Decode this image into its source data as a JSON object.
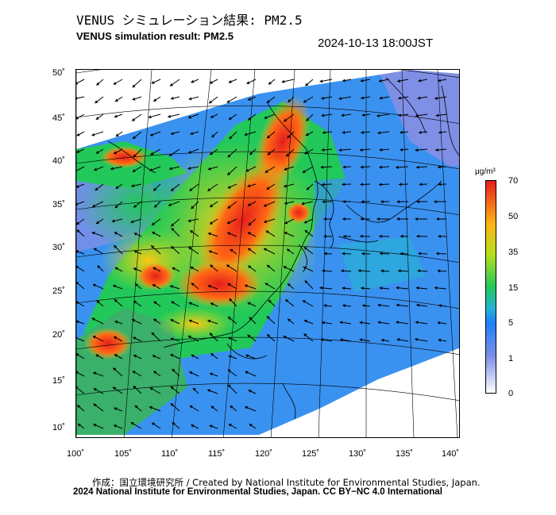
{
  "title": {
    "jp": "VENUS シミュレーション結果: PM2.5",
    "en": "VENUS simulation result: PM2.5",
    "timestamp": "2024-10-13 18:00JST"
  },
  "map": {
    "lat_labels": [
      "50˚",
      "45˚",
      "40˚",
      "35˚",
      "30˚",
      "25˚",
      "20˚",
      "15˚",
      "10˚"
    ],
    "lon_labels": [
      "100˚",
      "105˚",
      "110˚",
      "115˚",
      "120˚",
      "125˚",
      "130˚",
      "135˚",
      "140˚"
    ],
    "lat_range": [
      10,
      50
    ],
    "lon_range": [
      100,
      140
    ]
  },
  "colorbar": {
    "unit": "μg/m³",
    "ticks": [
      "70",
      "50",
      "35",
      "15",
      "5",
      "1",
      "0"
    ],
    "colors": {
      "c0": "#ffffff",
      "c1": "#7f8fe6",
      "c5": "#1e7fff",
      "c15": "#22c85a",
      "c35": "#b4e01e",
      "c50": "#ffb414",
      "c70": "#e61e1e"
    }
  },
  "credits": {
    "line1": "作成：国立環境研究所 / Created by National Institute for Environmental Studies, Japan.",
    "line2": "2024 National Institute for Environmental Studies, Japan. CC BY−NC 4.0 International"
  }
}
